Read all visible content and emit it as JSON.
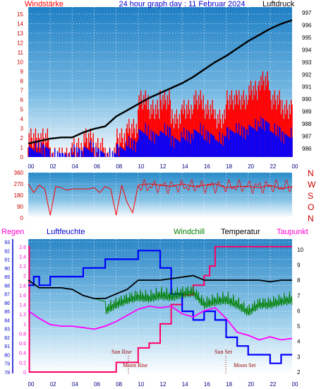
{
  "header": {
    "left": "Windstärke",
    "center": "24 hour graph day : 11 Februar 2024",
    "right": "Luftdruck"
  },
  "mid": {
    "compass": [
      "N",
      "W",
      "S",
      "O",
      "N"
    ]
  },
  "bottom": {
    "labels": {
      "regen": "Regen",
      "luftfeuchte": "Luftfeuchte",
      "windchill": "Windchill",
      "temperatur": "Temperatur",
      "taupunkt": "Taupunkt"
    },
    "annotations": [
      "Sun Rise",
      "Moon Rise",
      "Sun Set",
      "Moon Set"
    ]
  },
  "colors": {
    "wind": "#ff0000",
    "gust": "#0000ff",
    "pressure": "#000000",
    "direction": "#ff0000",
    "humidity": "#0000ff",
    "temperature": "#000000",
    "windchill": "#008000",
    "dewpoint": "#ff00ff",
    "rain": "#ff0066",
    "title": "#0000cc"
  },
  "chart_data": [
    {
      "type": "line",
      "title": "24 hour graph day : 11 Februar 2024",
      "x_ticks": [
        "00",
        "02",
        "04",
        "06",
        "08",
        "10",
        "12",
        "14",
        "16",
        "18",
        "20",
        "22",
        "00"
      ],
      "y_left_ticks": [
        0,
        1,
        2,
        3,
        4,
        5,
        6,
        7,
        8,
        9,
        10,
        11,
        12,
        13,
        14,
        15
      ],
      "y_right_ticks": [
        986,
        987,
        988,
        989,
        990,
        991,
        992,
        993,
        994,
        995,
        996,
        997
      ],
      "grid": true,
      "series": [
        {
          "name": "Windstärke",
          "axis": "left",
          "x": [
            0,
            1,
            2,
            3,
            4,
            5,
            6,
            7,
            8,
            9,
            10,
            11,
            12,
            13,
            14,
            15,
            16,
            17,
            18,
            19,
            20,
            21,
            22,
            23,
            24
          ],
          "y": [
            2,
            2,
            0,
            0,
            1,
            2,
            1,
            0,
            2,
            3,
            6,
            5,
            6,
            4,
            5,
            6,
            5,
            4,
            6,
            6,
            7,
            8,
            6,
            5,
            5
          ]
        },
        {
          "name": "Luftdruck",
          "axis": "right",
          "x": [
            0,
            1,
            2,
            3,
            4,
            5,
            6,
            7,
            8,
            9,
            10,
            11,
            12,
            13,
            14,
            15,
            16,
            17,
            18,
            19,
            20,
            21,
            22,
            23,
            24
          ],
          "y": [
            986.4,
            986.6,
            986.8,
            986.9,
            986.9,
            987.3,
            987.6,
            987.8,
            988.6,
            989.1,
            989.6,
            990.1,
            990.5,
            990.9,
            991.3,
            991.8,
            992.4,
            993.0,
            993.5,
            994.1,
            994.7,
            995.2,
            995.7,
            996.1,
            996.4
          ]
        }
      ]
    },
    {
      "type": "line",
      "y_ticks": [
        0,
        90,
        180,
        270,
        360
      ],
      "x_ticks": [
        "00",
        "02",
        "04",
        "06",
        "08",
        "10",
        "12",
        "14",
        "16",
        "18",
        "20",
        "22",
        "00"
      ],
      "series": [
        {
          "name": "Windrichtung",
          "x": [
            0,
            0.5,
            1,
            1.5,
            2,
            2.5,
            3,
            3.5,
            4,
            4.5,
            5,
            5.5,
            6,
            6.5,
            7,
            7.5,
            8,
            8.5,
            9,
            9.5,
            10,
            11,
            12,
            13,
            14,
            15,
            16,
            17,
            18,
            19,
            20,
            21,
            22,
            23,
            24
          ],
          "y": [
            270,
            200,
            260,
            230,
            20,
            250,
            240,
            220,
            230,
            230,
            230,
            230,
            240,
            200,
            250,
            230,
            20,
            260,
            120,
            40,
            260,
            270,
            260,
            250,
            270,
            250,
            260,
            270,
            240,
            250,
            250,
            240,
            260,
            230,
            250
          ]
        }
      ]
    },
    {
      "type": "line",
      "x_ticks": [
        "00",
        "02",
        "04",
        "06",
        "08",
        "10",
        "12",
        "14",
        "16",
        "18",
        "20",
        "22",
        "00"
      ],
      "y_left_outer_ticks": [
        0,
        0.2,
        0.4,
        0.6,
        0.8,
        1,
        1.2,
        1.4,
        1.6,
        1.8,
        2,
        2.2,
        2.4,
        2.6
      ],
      "y_left_inner_ticks": [
        78,
        79,
        80,
        81,
        82,
        83,
        84,
        85,
        86,
        87,
        88,
        89,
        90,
        91,
        92,
        93
      ],
      "y_right_ticks": [
        2,
        3,
        4,
        5,
        6,
        7,
        8,
        9,
        10
      ],
      "grid": true,
      "series": [
        {
          "name": "Luftfeuchte",
          "axis": "humidity",
          "x": [
            0,
            0.5,
            1,
            2,
            3,
            4,
            5,
            6,
            7,
            8,
            9,
            10,
            11,
            12,
            13,
            14,
            15,
            16,
            17,
            18,
            19,
            20,
            21,
            22,
            23,
            24
          ],
          "y": [
            88,
            89,
            88,
            89,
            89,
            89,
            90,
            90,
            91,
            91,
            91,
            92,
            92,
            90,
            87,
            85,
            84,
            85,
            84,
            82,
            81,
            80,
            80,
            79,
            80,
            80
          ]
        },
        {
          "name": "Temperatur",
          "axis": "temp",
          "x": [
            0,
            1,
            2,
            3,
            4,
            5,
            6,
            7,
            8,
            9,
            10,
            11,
            12,
            13,
            14,
            15,
            16,
            17,
            18,
            19,
            20,
            21,
            22,
            23,
            24
          ],
          "y": [
            8,
            7.5,
            7.5,
            7.5,
            7.4,
            7.0,
            6.8,
            6.8,
            7.1,
            7.4,
            8.0,
            8.0,
            8.0,
            8.1,
            8.2,
            8.3,
            8.0,
            8.0,
            8.0,
            8.0,
            8.0,
            8.0,
            7.9,
            8.0,
            8.0
          ]
        },
        {
          "name": "Windchill",
          "axis": "temp",
          "x": [
            0,
            1,
            2,
            3,
            4,
            5,
            6,
            7,
            8,
            9,
            10,
            11,
            12,
            13,
            14,
            15,
            16,
            17,
            18,
            19,
            20,
            21,
            22,
            23,
            24
          ],
          "y": [
            8,
            7.5,
            7.5,
            7.5,
            7.4,
            7.0,
            6.8,
            6.6,
            7.0,
            7.3,
            7.5,
            7.4,
            7.6,
            7.5,
            7.7,
            7.8,
            7.0,
            7.2,
            7.3,
            7.0,
            6.5,
            7.0,
            7.0,
            7.2,
            7.3
          ]
        },
        {
          "name": "Taupunkt",
          "axis": "temp",
          "x": [
            0,
            1,
            2,
            3,
            4,
            5,
            6,
            7,
            8,
            9,
            10,
            11,
            12,
            13,
            14,
            15,
            16,
            17,
            18,
            19,
            20,
            21,
            22,
            23,
            24
          ],
          "y": [
            6,
            5.5,
            5.1,
            5.0,
            5.0,
            4.9,
            4.8,
            5.0,
            5.3,
            5.7,
            6.1,
            6.3,
            6.2,
            6.3,
            5.8,
            5.6,
            6.0,
            6.2,
            5.5,
            4.6,
            4.4,
            4.1,
            4.3,
            4.1,
            4.2
          ]
        },
        {
          "name": "Regen",
          "axis": "rain",
          "x": [
            0,
            0.1,
            1,
            2,
            3,
            4,
            5,
            6,
            7,
            8,
            9,
            10,
            11,
            12,
            13,
            14,
            15,
            16,
            16.5,
            17,
            18,
            19,
            20,
            21,
            22,
            23,
            24
          ],
          "y": [
            2.6,
            0,
            0,
            0,
            0,
            0,
            0,
            0,
            0,
            0.2,
            0.2,
            0.5,
            0.6,
            1.0,
            1.4,
            1.6,
            1.8,
            2.0,
            2.2,
            2.6,
            2.6,
            2.6,
            2.6,
            2.6,
            2.6,
            2.6,
            2.6
          ]
        }
      ]
    }
  ]
}
